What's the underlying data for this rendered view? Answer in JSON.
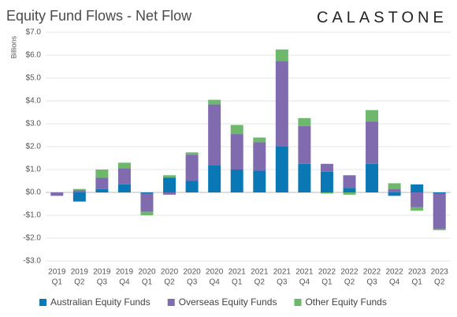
{
  "chart_data": {
    "type": "stacked-bar",
    "title": "Equity Fund Flows - Net Flow",
    "logo": "CALASTONE",
    "y_label": "Billions",
    "categories": [
      [
        "2019",
        "Q1"
      ],
      [
        "2019",
        "Q2"
      ],
      [
        "2019",
        "Q3"
      ],
      [
        "2019",
        "Q4"
      ],
      [
        "2020",
        "Q1"
      ],
      [
        "2020",
        "Q2"
      ],
      [
        "2020",
        "Q3"
      ],
      [
        "2020",
        "Q4"
      ],
      [
        "2021",
        "Q1"
      ],
      [
        "2021",
        "Q2"
      ],
      [
        "2021",
        "Q3"
      ],
      [
        "2021",
        "Q4"
      ],
      [
        "2022",
        "Q1"
      ],
      [
        "2022",
        "Q2"
      ],
      [
        "2022",
        "Q3"
      ],
      [
        "2022",
        "Q4"
      ],
      [
        "2023",
        "Q1"
      ],
      [
        "2023",
        "Q2"
      ]
    ],
    "series": [
      {
        "name": "Australian Equity Funds",
        "color": "#0b78b6",
        "values": [
          0,
          -0.4,
          0.15,
          0.35,
          -0.05,
          0.65,
          0.5,
          1.2,
          1.0,
          0.95,
          2.0,
          1.25,
          0.9,
          0.2,
          1.25,
          -0.15,
          0.35,
          -0.05
        ]
      },
      {
        "name": "Overseas Equity Funds",
        "color": "#7f6bad",
        "values": [
          -0.15,
          0.1,
          0.5,
          0.7,
          -0.8,
          -0.1,
          1.15,
          2.65,
          1.55,
          1.25,
          3.75,
          1.65,
          0.35,
          0.55,
          1.85,
          0.15,
          -0.65,
          -1.55
        ]
      },
      {
        "name": "Other Equity Funds",
        "color": "#6db86b",
        "values": [
          0,
          0.05,
          0.35,
          0.25,
          -0.15,
          0.1,
          0.1,
          0.2,
          0.4,
          0.2,
          0.5,
          0.35,
          -0.05,
          -0.1,
          0.5,
          0.25,
          -0.15,
          -0.05
        ]
      }
    ],
    "ylim": [
      -3,
      7
    ],
    "yticks": [
      {
        "value": -3,
        "label": "-$3.0"
      },
      {
        "value": -2,
        "label": "-$2.0"
      },
      {
        "value": -1,
        "label": "-$1.0"
      },
      {
        "value": 0,
        "label": "$0.0"
      },
      {
        "value": 1,
        "label": "$1.0"
      },
      {
        "value": 2,
        "label": "$2.0"
      },
      {
        "value": 3,
        "label": "$3.0"
      },
      {
        "value": 4,
        "label": "$4.0"
      },
      {
        "value": 5,
        "label": "$5.0"
      },
      {
        "value": 6,
        "label": "$6.0"
      },
      {
        "value": 7,
        "label": "$7.0"
      }
    ],
    "grid": true
  }
}
